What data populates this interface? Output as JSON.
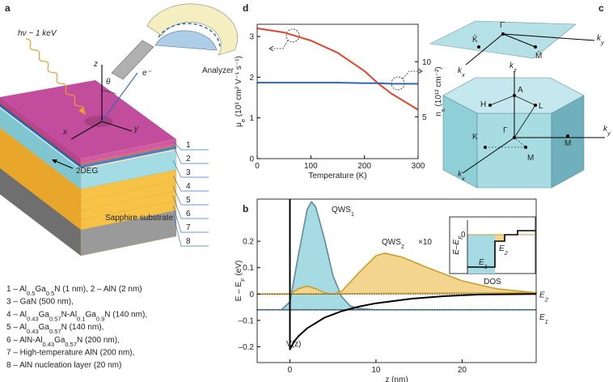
{
  "panels": {
    "a": {
      "letter": "a",
      "photon": "hν ~ 1 keV",
      "analyzer": "Analyzer",
      "axis_z": "z",
      "axis_x": "x",
      "axis_y": "y",
      "theta": "θ",
      "electron": "e⁻",
      "twodeg": "2DEG",
      "layer_numbers": [
        "1",
        "2",
        "3",
        "4",
        "5",
        "6",
        "7",
        "8"
      ],
      "substrate": "Sapphire substrate",
      "legend": [
        [
          "1 – Al",
          "0.5",
          "Ga",
          "0.5",
          "N (1 nm),  2 – AlN (2 nm)"
        ],
        [
          "3 – GaN (500 nm),"
        ],
        [
          "4 – Al",
          "0.43",
          "Ga",
          "0.57",
          "N-Al",
          "0.1",
          "Ga",
          "0.9",
          "N (140 nm),"
        ],
        [
          "5 – Al",
          "0.43",
          "Ga",
          "0.57",
          "N (140 nm),"
        ],
        [
          "6 – AlN-Al",
          "0.43",
          "Ga",
          "0.57",
          "N (200 nm),"
        ],
        [
          "7 – High-temperature AlN (200 nm),"
        ],
        [
          "8 – AlN nucleation layer (20 nm)"
        ]
      ]
    },
    "c": {
      "letter": "c",
      "kbar": "K̄",
      "gbar": "Γ̄",
      "mbar": "M̄",
      "ky_top": [
        "k",
        "y"
      ],
      "kx_top": [
        "k",
        "x"
      ],
      "kz": [
        "k",
        "z"
      ],
      "a": "A",
      "h": "H",
      "l": "L",
      "k": "K",
      "g": "Γ",
      "m": "M",
      "m2": "M",
      "kx": [
        "k",
        "x"
      ],
      "ky": [
        "k",
        "y"
      ]
    }
  },
  "chart_data": [
    {
      "type": "line",
      "panel": "d",
      "xlabel": "Temperature (K)",
      "ylabel": [
        "μ",
        "e",
        " (10³ cm² V⁻¹ s⁻¹)"
      ],
      "y2label": [
        "n",
        "s",
        " (10¹² cm⁻²)"
      ],
      "x": [
        0,
        50,
        100,
        150,
        200,
        225,
        250,
        300
      ],
      "xlim": [
        0,
        300
      ],
      "xticks": [
        0,
        100,
        200,
        300
      ],
      "ylim": [
        0,
        3.3
      ],
      "yticks": [
        0,
        1,
        2,
        3
      ],
      "y2lim": [
        1.2,
        13.4
      ],
      "y2ticks": [
        5,
        10
      ],
      "series": [
        {
          "color": "#e5432a",
          "axis": "y",
          "values": [
            3.2,
            3.1,
            2.9,
            2.6,
            2.15,
            1.85,
            1.6,
            1.2
          ]
        },
        {
          "color": "#2c67b5",
          "axis": "y2",
          "values": [
            8.1,
            8.1,
            8.1,
            8.1,
            8.05,
            8.05,
            8.0,
            8.0
          ]
        }
      ]
    },
    {
      "type": "line",
      "panel": "b",
      "xlabel": "z (nm)",
      "ylabel": [
        "E – E",
        "F",
        " (eV)"
      ],
      "xlim": [
        -3.8,
        28.6
      ],
      "xticks": [
        0,
        10,
        20
      ],
      "ylim": [
        -0.26,
        0.36
      ],
      "yticks": [
        {
          "value": -0.2,
          "label": "–0.2"
        },
        {
          "value": -0.1,
          "label": "–0.1"
        },
        0,
        0.1,
        0.2
      ],
      "series": [
        {
          "name": [
            "QWS",
            "1"
          ],
          "color": "#5f8a96",
          "fill": "#a6dbe3",
          "x": [
            -3.8,
            -1,
            0,
            1,
            2,
            2.5,
            3,
            4,
            5,
            6,
            7,
            8,
            10,
            28.6
          ],
          "values": [
            -0.06,
            -0.06,
            -0.03,
            0.15,
            0.32,
            0.35,
            0.33,
            0.21,
            0.07,
            -0.01,
            -0.045,
            -0.055,
            -0.06,
            -0.06
          ]
        },
        {
          "name": [
            "QWS",
            "2"
          ],
          "color": "#c9a02c",
          "fill": "#f3d58f",
          "x": [
            -3.8,
            0,
            1,
            2,
            3,
            4,
            5,
            6,
            8,
            10,
            11,
            13,
            16,
            20,
            24,
            28.6
          ],
          "values": [
            0,
            0,
            0.02,
            0.03,
            0.02,
            0.005,
            0,
            0.01,
            0.08,
            0.145,
            0.155,
            0.14,
            0.1,
            0.05,
            0.02,
            0.005
          ]
        },
        {
          "name": [
            "V(z)"
          ],
          "color": "#000000",
          "x": [
            0,
            0,
            0.5,
            1,
            2,
            4,
            6,
            8,
            10,
            14,
            18,
            22,
            28.6
          ],
          "values": [
            0.36,
            -0.21,
            -0.18,
            -0.16,
            -0.13,
            -0.09,
            -0.065,
            -0.048,
            -0.035,
            -0.018,
            -0.008,
            -0.002,
            0
          ]
        }
      ],
      "annotation": "×10",
      "levels": [
        {
          "label": [
            "E",
            "2"
          ],
          "value": 0
        },
        {
          "label": [
            "E",
            "1"
          ],
          "value": -0.06
        }
      ],
      "inset": {
        "ylabel": [
          "E–E",
          "F"
        ],
        "zero": "0",
        "e2": [
          "E",
          "2"
        ],
        "e1": [
          "E",
          "1"
        ],
        "xlabel": "DOS"
      }
    }
  ]
}
